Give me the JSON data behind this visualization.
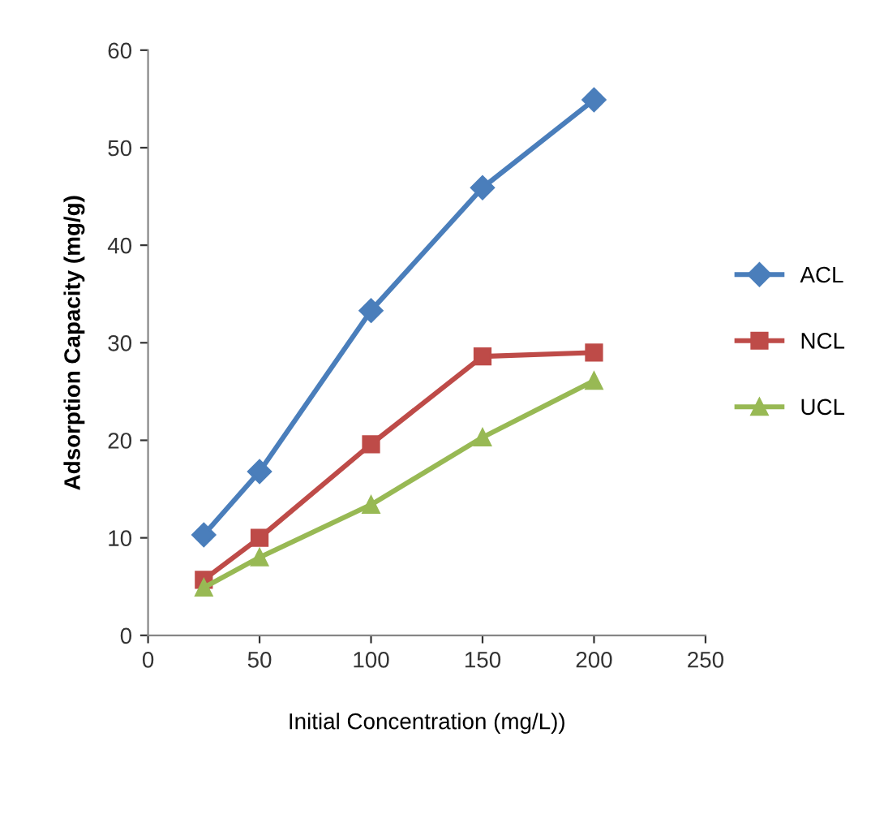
{
  "chart_data": {
    "type": "line",
    "xlabel": "Initial Concentration (mg/L))",
    "ylabel": "Adsorption Capacity (mg/g)",
    "x": [
      25,
      50,
      100,
      150,
      200
    ],
    "series": [
      {
        "name": "ACL",
        "color": "#4a7ebb",
        "marker": "diamond",
        "values": [
          10.3,
          16.8,
          33.3,
          45.9,
          54.9
        ]
      },
      {
        "name": "NCL",
        "color": "#be4b48",
        "marker": "square",
        "values": [
          5.7,
          10.0,
          19.6,
          28.6,
          29.0
        ]
      },
      {
        "name": "UCL",
        "color": "#98b954",
        "marker": "triangle",
        "values": [
          4.9,
          8.0,
          13.4,
          20.3,
          26.1
        ]
      }
    ],
    "xlim": [
      0,
      250
    ],
    "xticks": [
      0,
      50,
      100,
      150,
      200,
      250
    ],
    "ylim": [
      0,
      60
    ],
    "yticks": [
      0,
      10,
      20,
      30,
      40,
      50,
      60
    ],
    "grid": false,
    "legend": "right",
    "line_style": "solid"
  }
}
